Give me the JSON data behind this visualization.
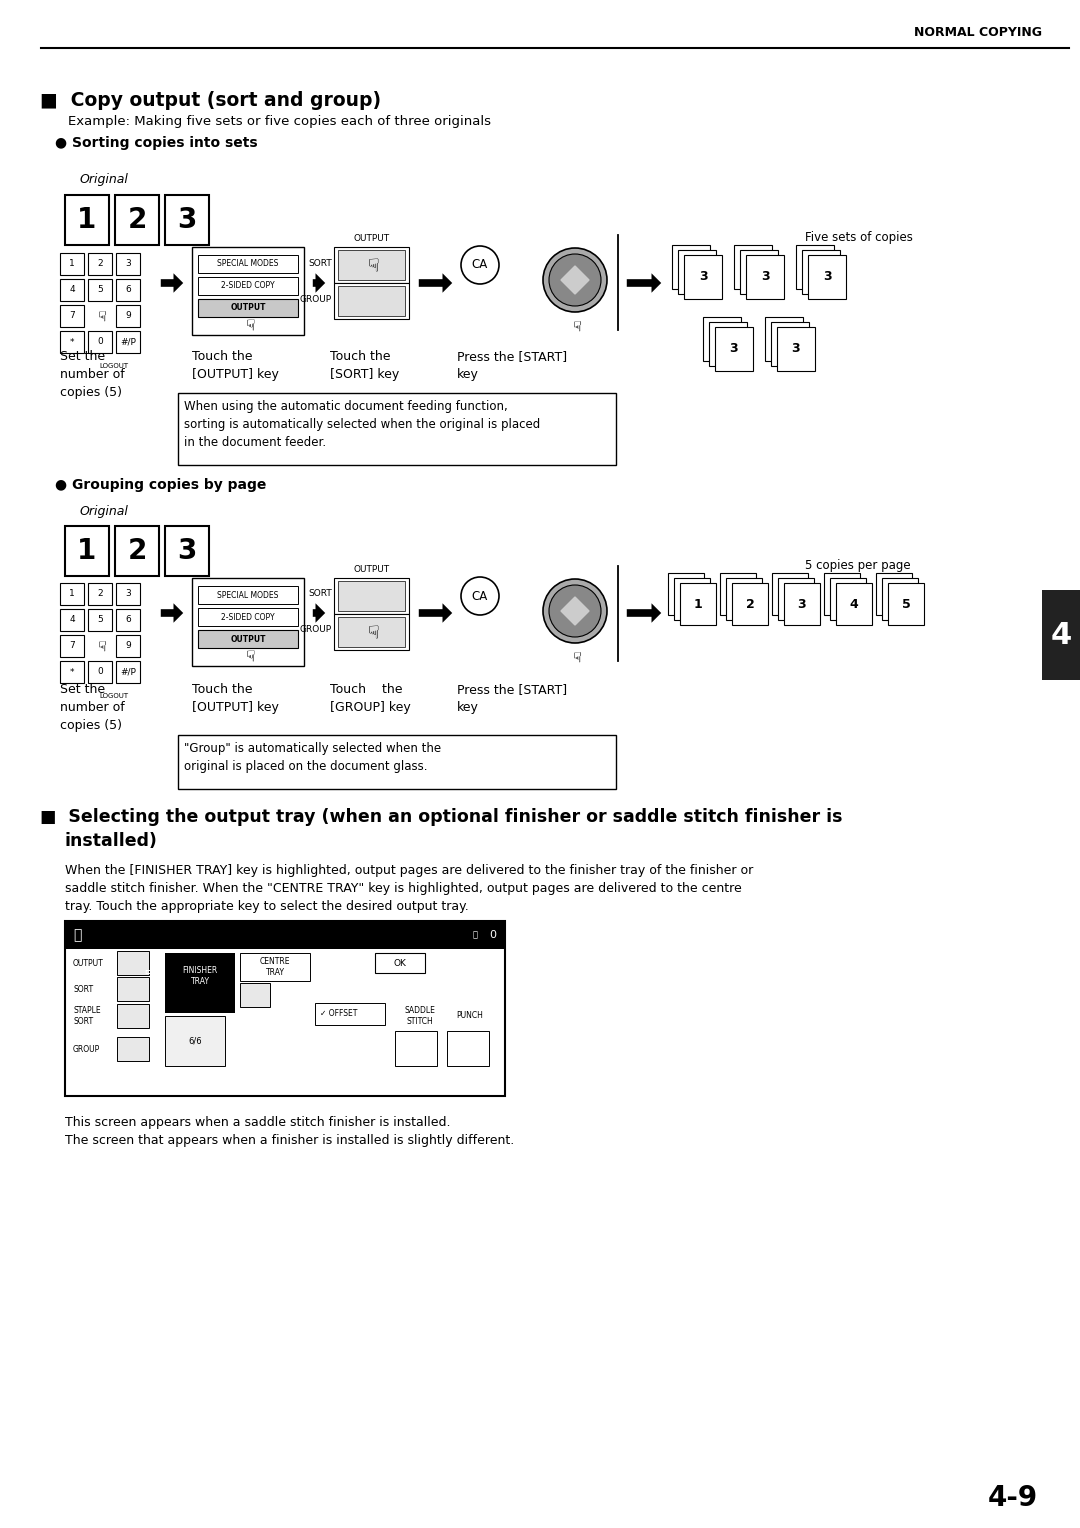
{
  "bg_color": "#ffffff",
  "header_text": "NORMAL COPYING",
  "section1_title": "■  Copy output (sort and group)",
  "section1_sub": "Example: Making five sets or five copies each of three originals",
  "sort_bullet": "● Sorting copies into sets",
  "group_bullet": "● Grouping copies by page",
  "section2_title": "■  Selecting the output tray (when an optional finisher or saddle stitch finisher is",
  "section2_title2": "installed)",
  "section2_body1": "When the [FINISHER TRAY] key is highlighted, output pages are delivered to the finisher tray of the finisher or",
  "section2_body2": "saddle stitch finisher. When the \"CENTRE TRAY\" key is highlighted, output pages are delivered to the centre",
  "section2_body3": "tray. Touch the appropriate key to select the desired output tray.",
  "screen_note1": "This screen appears when a saddle stitch finisher is installed.",
  "screen_note2": "The screen that appears when a finisher is installed is slightly different.",
  "page_num": "4-9",
  "tab_text": "4",
  "sort_original_label": "Original",
  "sort_five_sets_label": "Five sets of copies",
  "sort_step1": "Set the\nnumber of\ncopies (5)",
  "sort_step2": "Touch the\n[OUTPUT] key",
  "sort_step3": "Touch the\n[SORT] key",
  "sort_step4": "Press the [START]\nkey",
  "sort_note": "When using the automatic document feeding function,\nsorting is automatically selected when the original is placed\nin the document feeder.",
  "group_original_label": "Original",
  "group_5copies_label": "5 copies per page",
  "group_step1": "Set the\nnumber of\ncopies (5)",
  "group_step2": "Touch the\n[OUTPUT] key",
  "group_step3": "Touch    the\n[GROUP] key",
  "group_step4": "Press the [START]\nkey",
  "group_note": "\"Group\" is automatically selected when the\noriginal is placed on the document glass."
}
